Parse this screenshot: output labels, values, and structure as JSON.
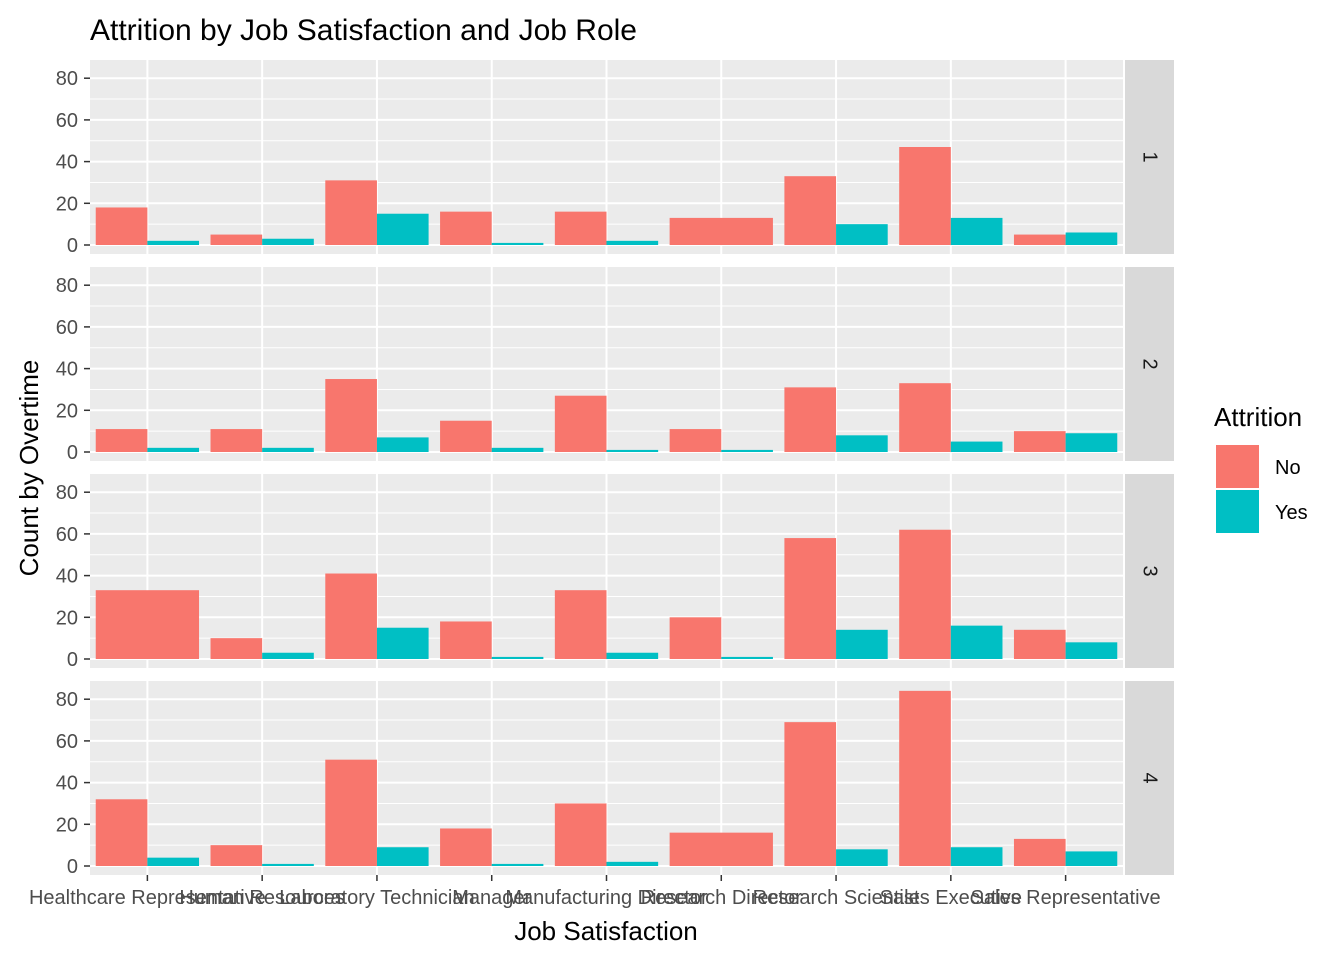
{
  "chart_data": {
    "type": "bar",
    "title": "Attrition by Job Satisfaction and Job Role",
    "xlabel": "Job Satisfaction",
    "ylabel": "Count by Overtime",
    "ylim": [
      0,
      88
    ],
    "y_ticks": [
      0,
      20,
      40,
      60,
      80
    ],
    "grid": true,
    "legend_position": "right",
    "legend_title": "Attrition",
    "categories": [
      "Healthcare Representative",
      "Human Resources",
      "Laboratory Technician",
      "Manager",
      "Manufacturing Director",
      "Research Director",
      "Research Scientist",
      "Sales Executive",
      "Sales Representative"
    ],
    "series_meta": [
      {
        "name": "No",
        "color": "#F8766D"
      },
      {
        "name": "Yes",
        "color": "#00BFC4"
      }
    ],
    "facets": [
      {
        "label": "1",
        "series": [
          {
            "name": "No",
            "values": [
              18,
              5,
              31,
              16,
              16,
              13,
              33,
              47,
              5
            ]
          },
          {
            "name": "Yes",
            "values": [
              2,
              3,
              15,
              1,
              2,
              null,
              10,
              13,
              6
            ]
          }
        ]
      },
      {
        "label": "2",
        "series": [
          {
            "name": "No",
            "values": [
              11,
              11,
              35,
              15,
              27,
              11,
              31,
              33,
              10
            ]
          },
          {
            "name": "Yes",
            "values": [
              2,
              2,
              7,
              2,
              1,
              1,
              8,
              5,
              9
            ]
          }
        ]
      },
      {
        "label": "3",
        "series": [
          {
            "name": "No",
            "values": [
              33,
              10,
              41,
              18,
              33,
              20,
              58,
              62,
              14
            ]
          },
          {
            "name": "Yes",
            "values": [
              null,
              3,
              15,
              1,
              3,
              1,
              14,
              16,
              8
            ]
          }
        ]
      },
      {
        "label": "4",
        "series": [
          {
            "name": "No",
            "values": [
              32,
              10,
              51,
              18,
              30,
              16,
              69,
              84,
              13
            ]
          },
          {
            "name": "Yes",
            "values": [
              4,
              1,
              9,
              1,
              2,
              null,
              8,
              9,
              7
            ]
          }
        ]
      }
    ]
  }
}
